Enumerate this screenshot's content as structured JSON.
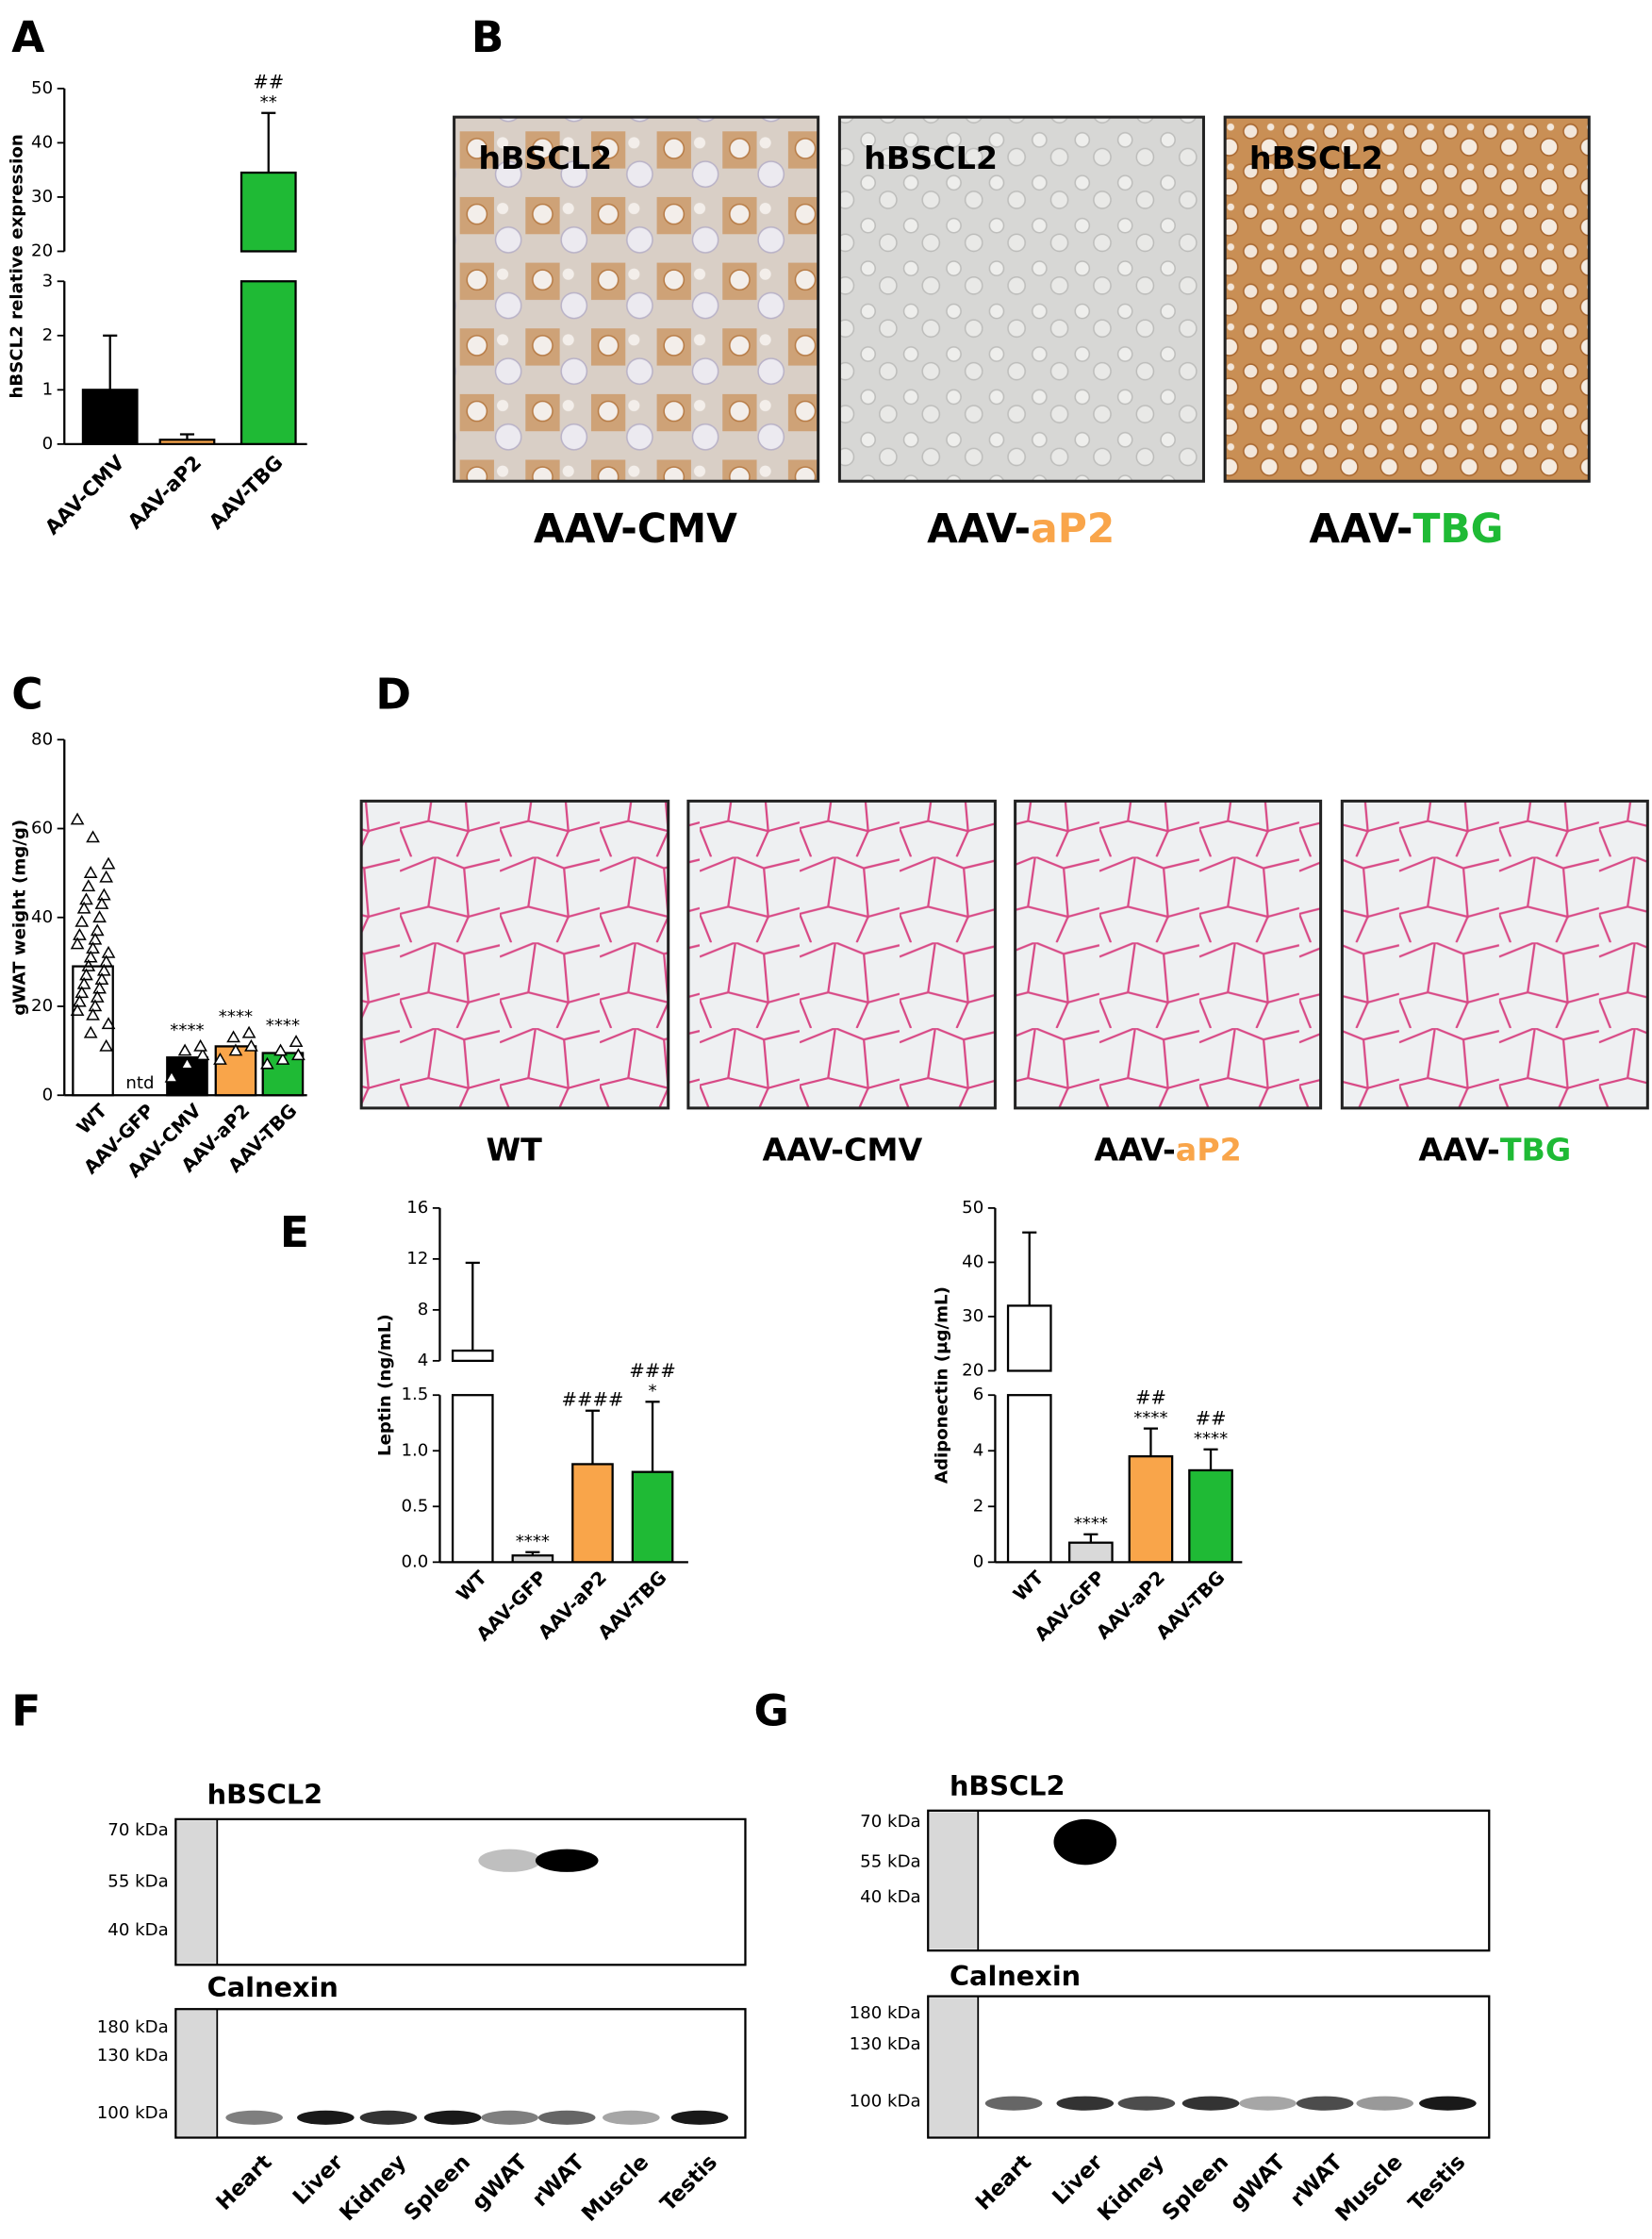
{
  "panel_labels": [
    "A",
    "B",
    "C",
    "D",
    "E",
    "F",
    "G"
  ],
  "chart_data": [
    {
      "type": "bar",
      "ylabel": "hBSCL2 relative expression",
      "categories": [
        "AAV-CMV",
        "AAV-aP2",
        "AAV-TBG"
      ],
      "values": [
        1,
        0.08,
        34.5
      ],
      "errors": [
        1,
        0.1,
        11
      ],
      "colors": [
        "#000000",
        "#f9a54a",
        "#1fba35"
      ],
      "segments": [
        {
          "ylim": [
            0,
            3
          ],
          "yticks": [
            0,
            1,
            2,
            3
          ]
        },
        {
          "ylim": [
            20,
            50
          ],
          "yticks": [
            20,
            30,
            40,
            50
          ]
        }
      ],
      "stars": [
        null,
        null,
        "**"
      ],
      "hashes": [
        null,
        null,
        "##"
      ]
    },
    {
      "type": "bar",
      "ylabel": "gWAT weight (mg/g)",
      "categories": [
        "WT",
        "AAV-GFP",
        "AAV-CMV",
        "AAV-aP2",
        "AAV-TBG"
      ],
      "values": [
        29,
        null,
        8.5,
        11,
        9.5
      ],
      "colors": [
        "#ffffff",
        "#d9d9d9",
        "#000000",
        "#f9a54a",
        "#1fba35"
      ],
      "segments": [
        {
          "ylim": [
            0,
            80
          ],
          "yticks": [
            0,
            20,
            40,
            60,
            80
          ]
        }
      ],
      "points": [
        [
          62,
          58,
          52,
          50,
          49,
          47,
          45,
          44,
          43,
          42,
          40,
          39,
          37,
          36,
          35,
          34,
          33,
          32,
          31,
          30,
          29,
          28,
          27,
          26,
          25,
          24,
          23,
          22,
          21,
          20,
          19,
          18,
          16,
          14,
          11
        ],
        [],
        [
          4,
          7,
          9,
          10,
          11
        ],
        [
          8,
          10,
          11,
          13,
          14
        ],
        [
          7,
          8,
          9,
          10,
          12
        ]
      ],
      "stars": [
        null,
        null,
        "****",
        "****",
        "****"
      ],
      "notes": [
        null,
        "ntd",
        null,
        null,
        null
      ]
    },
    {
      "type": "bar",
      "ylabel": "Leptin (ng/mL)",
      "categories": [
        "WT",
        "AAV-GFP",
        "AAV-aP2",
        "AAV-TBG"
      ],
      "values": [
        4.8,
        0.06,
        0.88,
        0.81
      ],
      "errors": [
        6.9,
        0.03,
        0.48,
        0.63
      ],
      "colors": [
        "#ffffff",
        "#d9d9d9",
        "#f9a54a",
        "#1fba35"
      ],
      "segments": [
        {
          "ylim": [
            0,
            1.5
          ],
          "yticks": [
            {
              "value": 0,
              "label": "0.0"
            },
            0.5,
            {
              "value": 1,
              "label": "1.0"
            },
            1.5
          ]
        },
        {
          "ylim": [
            4,
            16
          ],
          "yticks": [
            4,
            8,
            12,
            16
          ]
        }
      ],
      "stars": [
        null,
        "****",
        null,
        "*"
      ],
      "hashes": [
        null,
        null,
        "####",
        "###"
      ]
    },
    {
      "type": "bar",
      "ylabel": "Adiponectin (μg/mL)",
      "categories": [
        "WT",
        "AAV-GFP",
        "AAV-aP2",
        "AAV-TBG"
      ],
      "values": [
        32,
        0.7,
        3.8,
        3.3
      ],
      "errors": [
        13.5,
        0.3,
        1,
        0.75
      ],
      "colors": [
        "#ffffff",
        "#d9d9d9",
        "#f9a54a",
        "#1fba35"
      ],
      "segments": [
        {
          "ylim": [
            0,
            6
          ],
          "yticks": [
            0,
            2,
            4,
            6
          ]
        },
        {
          "ylim": [
            20,
            50
          ],
          "yticks": [
            20,
            30,
            40,
            50
          ]
        }
      ],
      "stars": [
        null,
        "****",
        "****",
        "****"
      ],
      "hashes": [
        null,
        null,
        "##",
        "##"
      ]
    }
  ],
  "panel_b": {
    "stain_labels": [
      "hBSCL2",
      "hBSCL2",
      "hBSCL2"
    ],
    "captions": [
      [
        "AAV-CMV"
      ],
      [
        "AAV-",
        "aP2"
      ],
      [
        "AAV-",
        "TBG"
      ]
    ]
  },
  "panel_d": {
    "captions": [
      [
        "WT"
      ],
      [
        "AAV-CMV"
      ],
      [
        "AAV-",
        "aP2"
      ],
      [
        "AAV-",
        "TBG"
      ]
    ]
  },
  "blot_f": {
    "top_label": "hBSCL2",
    "top_markers": [
      "70 kDa",
      "55 kDa",
      "40 kDa"
    ],
    "bottom_label": "Calnexin",
    "bottom_markers": [
      "180 kDa",
      "130 kDa",
      "100 kDa"
    ],
    "lanes": [
      "Heart",
      "Liver",
      "Kidney",
      "Spleen",
      "gWAT",
      "rWAT",
      "Muscle",
      "Testis"
    ]
  },
  "blot_g": {
    "top_label": "hBSCL2",
    "top_markers": [
      "70 kDa",
      "55 kDa",
      "40 kDa"
    ],
    "bottom_label": "Calnexin",
    "bottom_markers": [
      "180 kDa",
      "130 kDa",
      "100 kDa"
    ],
    "lanes": [
      "Heart",
      "Liver",
      "Kidney",
      "Spleen",
      "gWAT",
      "rWAT",
      "Muscle",
      "Testis"
    ]
  }
}
